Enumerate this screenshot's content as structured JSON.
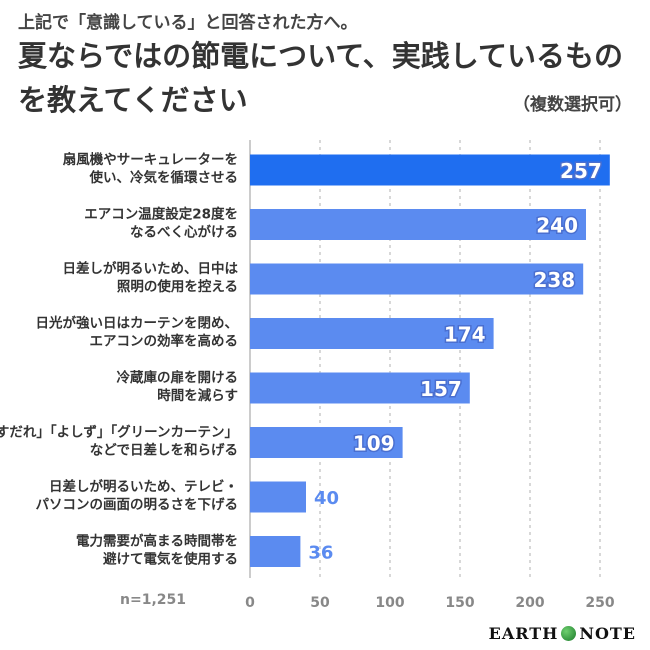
{
  "header": {
    "subtitle": "上記で「意識している」と回答された方へ。",
    "title": "夏ならではの節電について、実践しているものを教えてください",
    "multi_select": "（複数選択可）"
  },
  "footer": {
    "sample_size": "n=1,251",
    "brand_left": "EARTH",
    "brand_right": "NOTE",
    "brand_icon": "globe-icon"
  },
  "colors": {
    "top_bar": "#1f6ef0",
    "bar": "#5b8bf0",
    "grid": "#cccccc"
  },
  "chart_data": {
    "type": "bar",
    "orientation": "horizontal",
    "categories": [
      [
        "扇風機やサーキュレーターを",
        "使い、冷気を循環させる"
      ],
      [
        "エアコン温度設定28度を",
        "なるべく心がける"
      ],
      [
        "日差しが明るいため、日中は",
        "照明の使用を控える"
      ],
      [
        "日光が強い日はカーテンを閉め、",
        "エアコンの効率を高める"
      ],
      [
        "冷蔵庫の扉を開ける",
        "時間を減らす"
      ],
      [
        "「すだれ」「よしず」「グリーンカーテン」",
        "などで日差しを和らげる"
      ],
      [
        "日差しが明るいため、テレビ・",
        "パソコンの画面の明るさを下げる"
      ],
      [
        "電力需要が高まる時間帯を",
        "避けて電気を使用する"
      ]
    ],
    "values": [
      257,
      240,
      238,
      174,
      157,
      109,
      40,
      36
    ],
    "xlim": [
      0,
      250
    ],
    "ticks": [
      0,
      50,
      100,
      150,
      200,
      250
    ],
    "grid": "vertical-dashed",
    "legend": "none"
  }
}
